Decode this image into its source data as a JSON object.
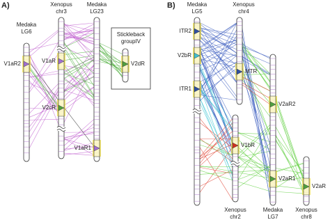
{
  "panels": [
    {
      "label": "A)",
      "chromosomes": [
        {
          "name": [
            "Medaka",
            "LG6"
          ]
        },
        {
          "name": [
            "Xenopus",
            "chr3"
          ]
        },
        {
          "name": [
            "Medaka",
            "LG23"
          ]
        },
        {
          "name": [
            "Stickleback",
            "groupIV"
          ]
        }
      ],
      "genes": [
        "V1aR2",
        "V1aR",
        "V2cR",
        "V1aR1",
        "V2dR"
      ]
    },
    {
      "label": "B)",
      "chromosomes": [
        {
          "name": [
            "Medaka",
            "LG5"
          ]
        },
        {
          "name": [
            "Xenopus",
            "chr4"
          ]
        },
        {
          "name": [
            "Xenopus",
            "chr2"
          ]
        },
        {
          "name": [
            "Medaka",
            "LG7"
          ]
        },
        {
          "name": [
            "Xenopus",
            "chr8"
          ]
        }
      ],
      "genes": [
        "ITR2",
        "V2bR",
        "MTR",
        "ITR1",
        "V2aR2",
        "V1bR",
        "V2aR1",
        "V2aR"
      ]
    }
  ]
}
